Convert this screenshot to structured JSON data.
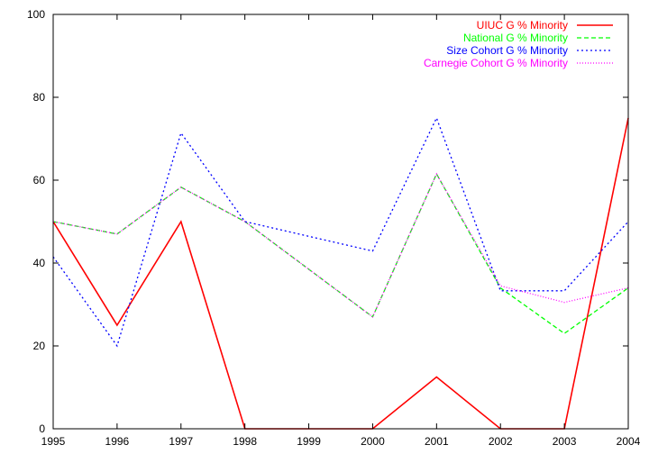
{
  "chart_data": {
    "type": "line",
    "title": "",
    "xlabel": "",
    "ylabel": "",
    "x": [
      1995,
      1996,
      1997,
      1998,
      1999,
      2000,
      2001,
      2002,
      2003,
      2004
    ],
    "xlim": [
      1995,
      2004
    ],
    "ylim": [
      0,
      100
    ],
    "xticks": [
      "1995",
      "1996",
      "1997",
      "1998",
      "1999",
      "2000",
      "2001",
      "2002",
      "2003",
      "2004"
    ],
    "yticks": [
      "0",
      "20",
      "40",
      "60",
      "80",
      "100"
    ],
    "grid": false,
    "legend_position": "top-right",
    "series": [
      {
        "name": "UIUC G % Minority",
        "color": "#ff0000",
        "dash": "solid",
        "x": [
          1995,
          1996,
          1997,
          1998,
          2000,
          2001,
          2002,
          2003,
          2004
        ],
        "values": [
          50,
          25,
          50,
          0,
          0,
          12.5,
          0,
          0,
          75
        ]
      },
      {
        "name": "National G % Minority",
        "color": "#00ff00",
        "dash": "dashed",
        "x": [
          1995,
          1996,
          1997,
          1998,
          2000,
          2001,
          2002,
          2003,
          2004
        ],
        "values": [
          50,
          47,
          58.3,
          50,
          27,
          61.5,
          34,
          23,
          34
        ]
      },
      {
        "name": "Size Cohort G % Minority",
        "color": "#0000ff",
        "dash": "dotted",
        "x": [
          1995,
          1996,
          1997,
          1998,
          2000,
          2001,
          2002,
          2003,
          2004
        ],
        "values": [
          41.5,
          20,
          71.4,
          50,
          42.9,
          75,
          33.3,
          33.3,
          50
        ]
      },
      {
        "name": "Carnegie Cohort G % Minority",
        "color": "#ff00ff",
        "dash": "dotted-fine",
        "x": [
          1995,
          1996,
          1997,
          1998,
          2000,
          2001,
          2002,
          2003,
          2004
        ],
        "values": [
          50,
          47,
          58.3,
          50,
          27,
          61.5,
          34.5,
          30.5,
          34
        ]
      }
    ]
  }
}
